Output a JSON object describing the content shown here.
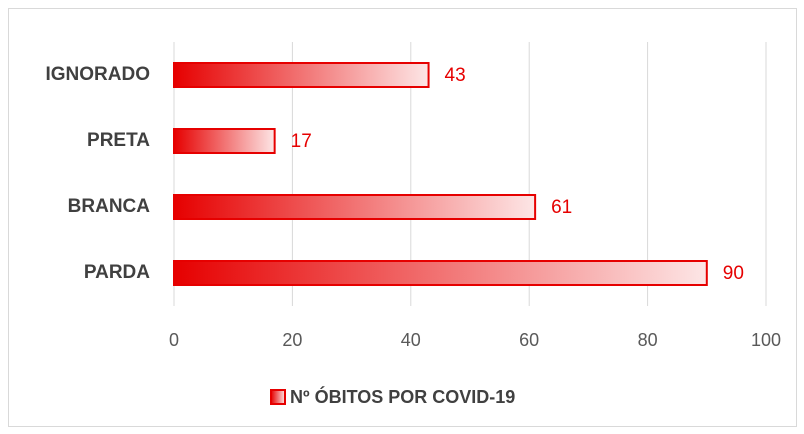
{
  "chart_data": {
    "type": "bar",
    "orientation": "horizontal",
    "categories": [
      "IGNORADO",
      "PRETA",
      "BRANCA",
      "PARDA"
    ],
    "series": [
      {
        "name": "Nº ÓBITOS POR COVID-19",
        "color": "#e60000",
        "values": [
          43,
          17,
          61,
          90
        ]
      }
    ],
    "xlim": [
      0,
      100
    ],
    "xticks": [
      0,
      20,
      40,
      60,
      80,
      100
    ],
    "grid": true,
    "legend": "bottom"
  }
}
